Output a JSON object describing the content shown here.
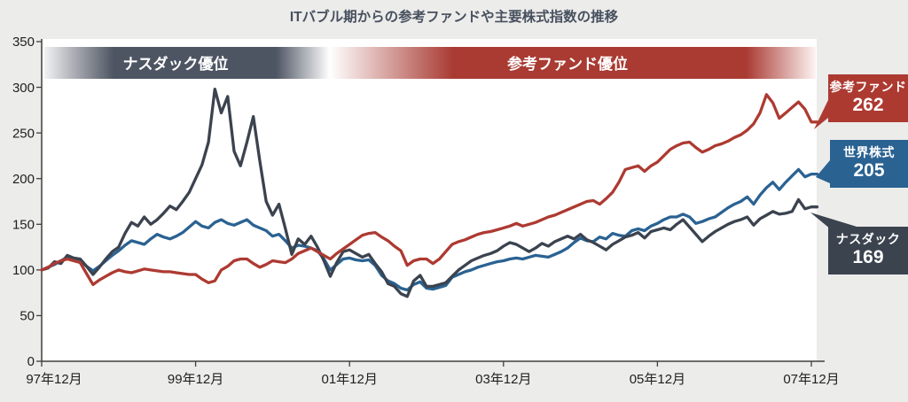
{
  "title": "ITバブル期からの参考ファンドや主要株式指数の推移",
  "banner": {
    "left_label": "ナスダック優位",
    "right_label": "参考ファンド優位"
  },
  "colors": {
    "background": "#ececeb",
    "plot_bg": "#ffffff",
    "axis": "#3f3f3f",
    "banner_gray": "#4d5462",
    "banner_red": "#a93b33",
    "banner_edge": "#f2f2f2"
  },
  "chart_data": {
    "type": "line",
    "title": "ITバブル期からの参考ファンドや主要株式指数の推移",
    "x_unit": "months since 1997-12 (monthly)",
    "x_tick_months": [
      0,
      24,
      48,
      72,
      96,
      120
    ],
    "x_tick_labels": [
      "97年12月",
      "99年12月",
      "01年12月",
      "03年12月",
      "05年12月",
      "07年12月"
    ],
    "ylim": [
      0,
      350
    ],
    "y_ticks": [
      0,
      50,
      100,
      150,
      200,
      250,
      300,
      350
    ],
    "grid": "off",
    "legend_position": "right-callouts",
    "series": [
      {
        "key": "fund",
        "name": "参考ファンド",
        "end_label": "262",
        "color": "#ad3a31",
        "values": [
          100,
          103,
          107,
          110,
          112,
          110,
          108,
          96,
          84,
          89,
          93,
          97,
          100,
          98,
          97,
          99,
          101,
          100,
          99,
          98,
          98,
          97,
          96,
          95,
          95,
          90,
          86,
          88,
          100,
          104,
          110,
          112,
          112,
          107,
          103,
          106,
          110,
          109,
          108,
          112,
          118,
          121,
          124,
          120,
          116,
          112,
          118,
          123,
          128,
          133,
          138,
          140,
          141,
          136,
          132,
          126,
          121,
          105,
          110,
          112,
          112,
          107,
          112,
          120,
          128,
          131,
          133,
          136,
          139,
          141,
          142,
          144,
          146,
          148,
          151,
          148,
          150,
          152,
          155,
          158,
          160,
          163,
          166,
          169,
          172,
          175,
          176,
          172,
          178,
          185,
          196,
          210,
          212,
          214,
          208,
          214,
          218,
          225,
          232,
          236,
          239,
          240,
          234,
          229,
          232,
          236,
          238,
          241,
          245,
          248,
          253,
          260,
          272,
          292,
          283,
          266,
          272,
          278,
          284,
          276,
          262
        ]
      },
      {
        "key": "world",
        "name": "世界株式",
        "end_label": "205",
        "color": "#2a6292",
        "values": [
          100,
          103,
          106,
          110,
          114,
          112,
          110,
          104,
          99,
          104,
          110,
          116,
          121,
          127,
          132,
          130,
          128,
          134,
          139,
          136,
          134,
          137,
          141,
          147,
          153,
          148,
          146,
          152,
          155,
          151,
          149,
          152,
          155,
          149,
          146,
          143,
          137,
          139,
          132,
          124,
          127,
          126,
          124,
          121,
          112,
          100,
          106,
          112,
          113,
          111,
          110,
          111,
          105,
          94,
          88,
          85,
          80,
          78,
          84,
          87,
          80,
          79,
          81,
          83,
          92,
          95,
          98,
          100,
          103,
          105,
          107,
          109,
          110,
          112,
          113,
          112,
          114,
          116,
          115,
          114,
          117,
          120,
          124,
          130,
          135,
          132,
          131,
          136,
          134,
          140,
          138,
          137,
          143,
          145,
          143,
          148,
          151,
          155,
          158,
          158,
          161,
          158,
          151,
          153,
          156,
          158,
          163,
          168,
          172,
          175,
          180,
          172,
          182,
          190,
          196,
          188,
          196,
          203,
          210,
          202,
          205
        ]
      },
      {
        "key": "nasdaq",
        "name": "ナスダック",
        "end_label": "169",
        "color": "#3b434f",
        "values": [
          100,
          102,
          109,
          107,
          116,
          113,
          112,
          104,
          95,
          103,
          112,
          120,
          125,
          140,
          152,
          148,
          158,
          150,
          155,
          162,
          170,
          166,
          175,
          185,
          200,
          215,
          240,
          298,
          272,
          290,
          230,
          214,
          240,
          268,
          220,
          175,
          160,
          172,
          145,
          117,
          134,
          128,
          137,
          125,
          110,
          93,
          108,
          120,
          122,
          118,
          114,
          117,
          107,
          98,
          85,
          82,
          74,
          71,
          88,
          94,
          82,
          82,
          84,
          86,
          93,
          100,
          105,
          110,
          113,
          116,
          118,
          121,
          126,
          130,
          128,
          124,
          120,
          124,
          129,
          126,
          131,
          134,
          137,
          134,
          139,
          133,
          130,
          126,
          122,
          128,
          132,
          136,
          138,
          141,
          135,
          142,
          144,
          146,
          144,
          150,
          155,
          147,
          139,
          131,
          137,
          142,
          146,
          150,
          153,
          155,
          158,
          149,
          156,
          160,
          164,
          161,
          162,
          164,
          177,
          167,
          169
        ]
      }
    ]
  },
  "legend": [
    {
      "label": "参考ファンド",
      "value": "262"
    },
    {
      "label": "世界株式",
      "value": "205"
    },
    {
      "label": "ナスダック",
      "value": "169"
    }
  ]
}
